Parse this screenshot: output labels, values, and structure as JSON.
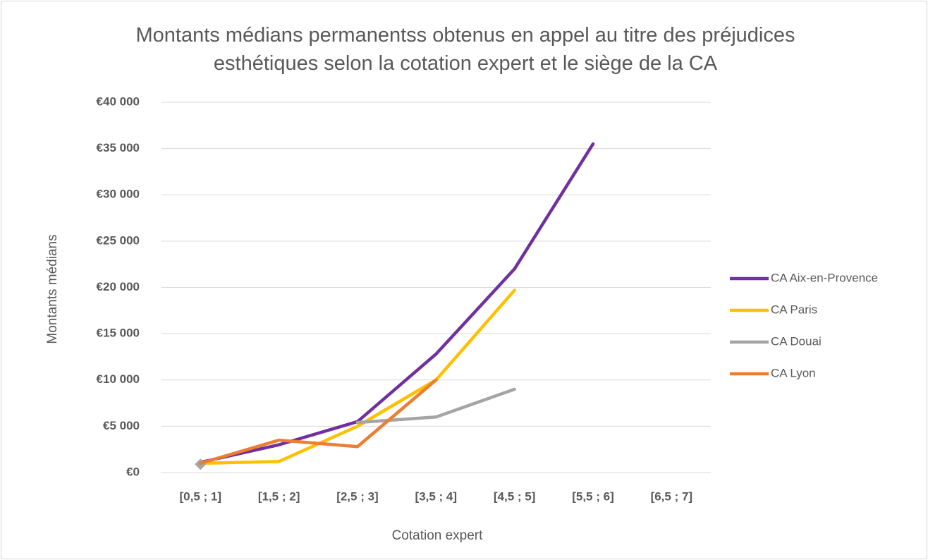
{
  "chart_data": {
    "type": "line",
    "title": "Montants médians permanentss obtenus en appel au titre des préjudices esthétiques selon la cotation expert et le siège de la CA",
    "x_label": "Cotation expert",
    "y_label": "Montants médians",
    "categories": [
      "[0,5 ; 1]",
      "[1,5 ; 2]",
      "[2,5 ; 3]",
      "[3,5 ; 4]",
      "[4,5 ; 5]",
      "[5,5 ; 6]",
      "[6,5 ; 7]"
    ],
    "series": [
      {
        "name": "CA Aix-en-Provence",
        "color": "#7030a0",
        "values": [
          1100,
          3000,
          5500,
          12800,
          22000,
          35500,
          null
        ]
      },
      {
        "name": "CA Paris",
        "color": "#ffc000",
        "values": [
          1000,
          1200,
          5000,
          10000,
          19700,
          null,
          null
        ]
      },
      {
        "name": "CA Douai",
        "color": "#a5a5a5",
        "values": [
          900,
          null,
          5400,
          6000,
          9000,
          null,
          null
        ]
      },
      {
        "name": "CA Lyon",
        "color": "#ed7d31",
        "values": [
          1000,
          3500,
          2800,
          10000,
          null,
          null,
          null
        ]
      }
    ],
    "ylim": [
      0,
      40000
    ],
    "yticks": [
      {
        "value": 0,
        "label": "€0"
      },
      {
        "value": 5000,
        "label": "€5 000"
      },
      {
        "value": 10000,
        "label": "€10 000"
      },
      {
        "value": 15000,
        "label": "€15 000"
      },
      {
        "value": 20000,
        "label": "€20 000"
      },
      {
        "value": 25000,
        "label": "€25 000"
      },
      {
        "value": 30000,
        "label": "€30 000"
      },
      {
        "value": 35000,
        "label": "€35 000"
      },
      {
        "value": 40000,
        "label": "€40 000"
      }
    ],
    "grid": true,
    "legend": "right"
  }
}
